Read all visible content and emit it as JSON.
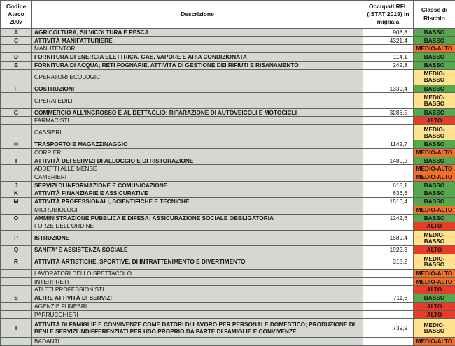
{
  "header": {
    "code": "Codice Ateco 2007",
    "description": "Descrizione",
    "occupied": "Occupati RFL (ISTAT 2019) in migliaia",
    "risk": "Classe di Rischio"
  },
  "risk_colors": {
    "BASSO": "#55a84e",
    "MEDIO-BASSO": "#ffe18e",
    "MEDIO-ALTO": "#f3702b",
    "ALTO": "#ea3a2a"
  },
  "rows": [
    {
      "code": "A",
      "description": "AGRICOLTURA, SILVICOLTURA E PESCA",
      "value": "908,8",
      "risk": "BASSO",
      "type": "sector",
      "tall": false
    },
    {
      "code": "C",
      "description": "ATTIVITÀ MANIFATTURIERE",
      "value": "4321,4",
      "risk": "BASSO",
      "type": "sector",
      "tall": false
    },
    {
      "code": "",
      "description": "MANUTENTORI",
      "value": "",
      "risk": "MEDIO-ALTO",
      "type": "occupation",
      "tall": false
    },
    {
      "code": "D",
      "description": "FORNITURA DI ENERGIA ELETTRICA, GAS, VAPORE E ARIA CONDIZIONATA",
      "value": "114,1",
      "risk": "BASSO",
      "type": "sector",
      "tall": false
    },
    {
      "code": "E",
      "description": "FORNITURA DI ACQUA; RETI FOGNARIE, ATTIVITÀ DI GESTIONE DEI RIFIUTI E RISANAMENTO",
      "value": "242,8",
      "risk": "BASSO",
      "type": "sector",
      "tall": false
    },
    {
      "code": "",
      "description": "OPERATORI ECOLOGICI",
      "value": "",
      "risk": "MEDIO-BASSO",
      "type": "occupation",
      "tall": false
    },
    {
      "code": "F",
      "description": "COSTRUZIONI",
      "value": "1339,4",
      "risk": "BASSO",
      "type": "sector",
      "tall": false
    },
    {
      "code": "",
      "description": "OPERAI EDILI",
      "value": "",
      "risk": "MEDIO-BASSO",
      "type": "occupation",
      "tall": false
    },
    {
      "code": "G",
      "description": "COMMERCIO ALL'INGROSSO E AL DETTAGLIO; RIPARAZIONE DI AUTOVEICOLI E MOTOCICLI",
      "value": "3286,5",
      "risk": "BASSO",
      "type": "sector",
      "tall": false
    },
    {
      "code": "",
      "description": "FARMACISTI",
      "value": "",
      "risk": "ALTO",
      "type": "occupation",
      "tall": false
    },
    {
      "code": "",
      "description": "CASSIERI",
      "value": "",
      "risk": "MEDIO-BASSO",
      "type": "occupation",
      "tall": false
    },
    {
      "code": "H",
      "description": "TRASPORTO E MAGAZZINAGGIO",
      "value": "1142,7",
      "risk": "BASSO",
      "type": "sector",
      "tall": false
    },
    {
      "code": "",
      "description": "CORRIERI",
      "value": "",
      "risk": "MEDIO-ALTO",
      "type": "occupation",
      "tall": false
    },
    {
      "code": "I",
      "description": "ATTIVITÀ DEI SERVIZI DI ALLOGGIO E DI RISTORAZIONE",
      "value": "1480,2",
      "risk": "BASSO",
      "type": "sector",
      "tall": false
    },
    {
      "code": "",
      "description": "ADDETTI ALLE MENSE",
      "value": "",
      "risk": "MEDIO-ALTO",
      "type": "occupation",
      "tall": false
    },
    {
      "code": "",
      "description": "CAMERIERI",
      "value": "",
      "risk": "MEDIO-ALTO",
      "type": "occupation",
      "tall": false
    },
    {
      "code": "J",
      "description": "SERVIZI DI INFORMAZIONE E COMUNICAZIONE",
      "value": "618,1",
      "risk": "BASSO",
      "type": "sector",
      "tall": false
    },
    {
      "code": "K",
      "description": "ATTIVITÀ FINANZIARIE E ASSICURATIVE",
      "value": "636,6",
      "risk": "BASSO",
      "type": "sector",
      "tall": false
    },
    {
      "code": "M",
      "description": "ATTIVITÀ PROFESSIONALI, SCIENTIFICHE E TECNICHE",
      "value": "1516,4",
      "risk": "BASSO",
      "type": "sector",
      "tall": false
    },
    {
      "code": "",
      "description": "MICROBIOLOGI",
      "value": "",
      "risk": "MEDIO-ALTO",
      "type": "occupation",
      "tall": false
    },
    {
      "code": "O",
      "description": "AMMINISTRAZIONE PUBBLICA E DIFESA; ASSICURAZIONE SOCIALE OBBLIGATORIA",
      "value": "1242,6",
      "risk": "BASSO",
      "type": "sector",
      "tall": false
    },
    {
      "code": "",
      "description": "FORZE DELL'ORDINE",
      "value": "",
      "risk": "ALTO",
      "type": "occupation",
      "tall": false
    },
    {
      "code": "P",
      "description": "ISTRUZIONE",
      "value": "1589,4",
      "risk": "MEDIO-BASSO",
      "type": "sector",
      "tall": false
    },
    {
      "code": "Q",
      "description": "SANITA' E ASSISTENZA SOCIALE",
      "value": "1922,3",
      "risk": "ALTO",
      "type": "sector",
      "tall": false
    },
    {
      "code": "R",
      "description": "ATTIVITÀ ARTISTICHE, SPORTIVE, DI INTRATTENIMENTO E DIVERTIMENTO",
      "value": "318,2",
      "risk": "MEDIO-BASSO",
      "type": "sector",
      "tall": false
    },
    {
      "code": "",
      "description": "LAVORATORI DELLO SPETTACOLO",
      "value": "",
      "risk": "MEDIO-ALTO",
      "type": "occupation",
      "tall": false
    },
    {
      "code": "",
      "description": "INTERPRETI",
      "value": "",
      "risk": "MEDIO-ALTO",
      "type": "occupation",
      "tall": false
    },
    {
      "code": "",
      "description": "ATLETI PROFESSIONISTI",
      "value": "",
      "risk": "ALTO",
      "type": "occupation",
      "tall": false
    },
    {
      "code": "S",
      "description": "ALTRE ATTIVITÀ DI SERVIZI",
      "value": "711,6",
      "risk": "BASSO",
      "type": "sector",
      "tall": false
    },
    {
      "code": "",
      "description": "AGENZIE FUNEBRI",
      "value": "",
      "risk": "ALTO",
      "type": "occupation",
      "tall": false
    },
    {
      "code": "",
      "description": "PARRUCCHIERI",
      "value": "",
      "risk": "ALTO",
      "type": "occupation",
      "tall": false
    },
    {
      "code": "T",
      "description": "ATTIVITÀ DI FAMIGLIE E CONVIVENZE COME DATORI DI LAVORO PER PERSONALE DOMESTICO; PRODUZIONE DI BENI E SERVIZI INDIFFERENZIATI PER USO PROPRIO  DA PARTE DI FAMIGLIE E CONVIVENZE",
      "value": "739,9",
      "risk": "MEDIO-BASSO",
      "type": "sector",
      "tall": true
    },
    {
      "code": "",
      "description": "BADANTI",
      "value": "",
      "risk": "MEDIO-ALTO",
      "type": "occupation",
      "tall": false
    }
  ]
}
